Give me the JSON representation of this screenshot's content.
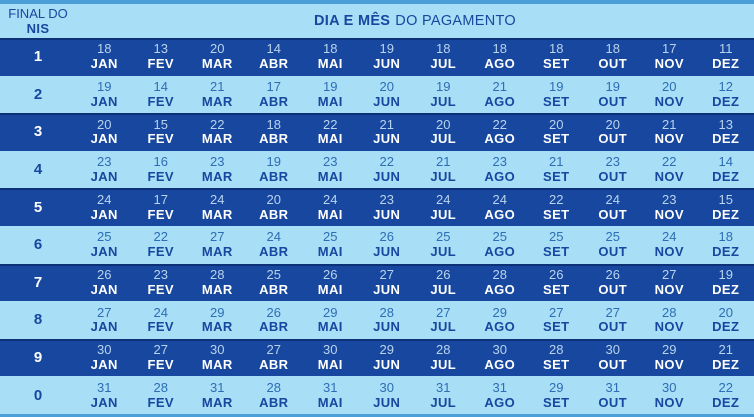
{
  "header": {
    "corner_line1": "FINAL DO",
    "corner_line2": "NIS",
    "title_bold": "DIA E MÊS",
    "title_regular": "DO PAGAMENTO"
  },
  "chart_data": {
    "type": "table",
    "title": "DIA E MÊS DO PAGAMENTO",
    "row_label": "FINAL DO NIS",
    "columns": [
      "JAN",
      "FEV",
      "MAR",
      "ABR",
      "MAI",
      "JUN",
      "JUL",
      "AGO",
      "SET",
      "OUT",
      "NOV",
      "DEZ"
    ],
    "rows": [
      {
        "nis": "1",
        "days": [
          18,
          13,
          20,
          14,
          18,
          19,
          18,
          18,
          18,
          18,
          17,
          11
        ]
      },
      {
        "nis": "2",
        "days": [
          19,
          14,
          21,
          17,
          19,
          20,
          19,
          21,
          19,
          19,
          20,
          12
        ]
      },
      {
        "nis": "3",
        "days": [
          20,
          15,
          22,
          18,
          22,
          21,
          20,
          22,
          20,
          20,
          21,
          13
        ]
      },
      {
        "nis": "4",
        "days": [
          23,
          16,
          23,
          19,
          23,
          22,
          21,
          23,
          21,
          23,
          22,
          14
        ]
      },
      {
        "nis": "5",
        "days": [
          24,
          17,
          24,
          20,
          24,
          23,
          24,
          24,
          22,
          24,
          23,
          15
        ]
      },
      {
        "nis": "6",
        "days": [
          25,
          22,
          27,
          24,
          25,
          26,
          25,
          25,
          25,
          25,
          24,
          18
        ]
      },
      {
        "nis": "7",
        "days": [
          26,
          23,
          28,
          25,
          26,
          27,
          26,
          28,
          26,
          26,
          27,
          19
        ]
      },
      {
        "nis": "8",
        "days": [
          27,
          24,
          29,
          26,
          29,
          28,
          27,
          29,
          27,
          27,
          28,
          20
        ]
      },
      {
        "nis": "9",
        "days": [
          30,
          27,
          30,
          27,
          30,
          29,
          28,
          30,
          28,
          30,
          29,
          21
        ]
      },
      {
        "nis": "0",
        "days": [
          31,
          28,
          31,
          28,
          31,
          30,
          31,
          31,
          29,
          31,
          30,
          22
        ]
      }
    ]
  },
  "colors": {
    "navy": "#17479E",
    "light": "#A9DEF7",
    "strip": "#4A9FD8",
    "borderDark": "#0D3176",
    "darkRowDay": "#B9D4EE",
    "lightRowDay": "#2D6DB4",
    "white": "#FFFFFF"
  }
}
